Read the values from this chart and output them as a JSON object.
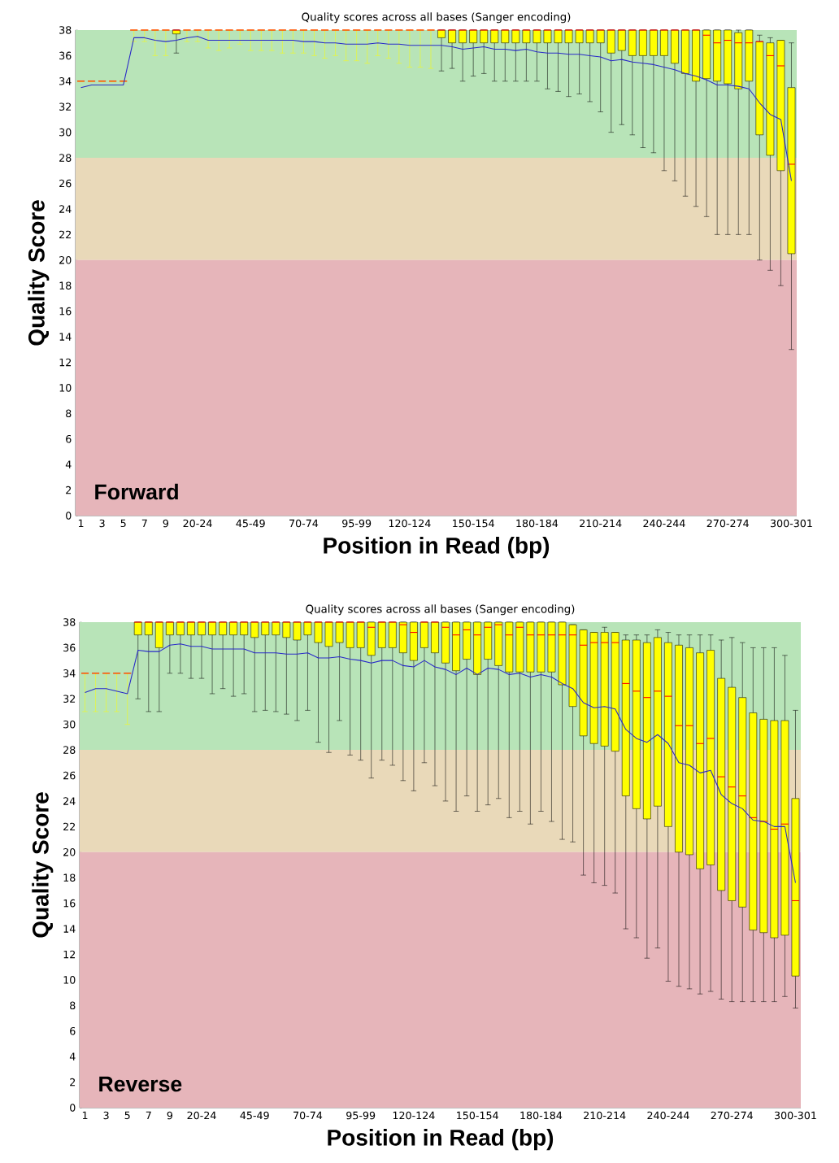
{
  "chart_data": [
    {
      "type": "box",
      "title": "Quality scores across all bases (Sanger encoding)",
      "xlabel": "Position in Read (bp)",
      "ylabel": "Quality Score",
      "annotations": [
        "Forward"
      ],
      "categories": [
        "1",
        null,
        "3",
        null,
        "5",
        null,
        "7",
        null,
        "9",
        null,
        null,
        "20-24",
        null,
        null,
        null,
        null,
        "45-49",
        null,
        null,
        null,
        null,
        "70-74",
        null,
        null,
        null,
        null,
        "95-99",
        null,
        null,
        null,
        null,
        "120-124",
        null,
        null,
        null,
        null,
        null,
        "150-154",
        null,
        null,
        null,
        null,
        null,
        "180-184",
        null,
        null,
        null,
        null,
        null,
        "210-214",
        null,
        null,
        null,
        null,
        null,
        "240-244",
        null,
        null,
        null,
        null,
        null,
        "270-274",
        null,
        null,
        null,
        null,
        null,
        "300-301"
      ],
      "ylim": [
        0,
        38
      ],
      "yticks": [
        0,
        2,
        4,
        6,
        8,
        10,
        12,
        14,
        16,
        18,
        20,
        22,
        24,
        26,
        28,
        30,
        32,
        34,
        36,
        38
      ],
      "bands": [
        {
          "axis": "y",
          "from": 28,
          "to": 38,
          "color": "#b8e4b8"
        },
        {
          "axis": "y",
          "from": 20,
          "to": 28,
          "color": "#e9d9b9"
        },
        {
          "axis": "y",
          "from": 0,
          "to": 20,
          "color": "#e6b5ba"
        }
      ],
      "series": [
        {
          "type": "box",
          "color": "#ffff00",
          "boxes": [
            {
              "low": 34,
              "q1": 34,
              "median": 34,
              "q3": 34,
              "high": 34
            },
            {
              "low": 34,
              "q1": 34,
              "median": 34,
              "q3": 34,
              "high": 34
            },
            {
              "low": 34,
              "q1": 34,
              "median": 34,
              "q3": 34,
              "high": 34
            },
            {
              "low": 34,
              "q1": 34,
              "median": 34,
              "q3": 34,
              "high": 34
            },
            {
              "low": 34,
              "q1": 34,
              "median": 34,
              "q3": 34,
              "high": 34
            },
            {
              "low": 37.1,
              "q1": 38,
              "median": 38,
              "q3": 38,
              "high": 38
            },
            {
              "low": 37.1,
              "q1": 38,
              "median": 38,
              "q3": 38,
              "high": 38
            },
            {
              "low": 36.0,
              "q1": 38,
              "median": 38,
              "q3": 38,
              "high": 38
            },
            {
              "low": 36.0,
              "q1": 38,
              "median": 38,
              "q3": 38,
              "high": 38
            },
            {
              "low": 36.2,
              "q1": 37.7,
              "median": 38,
              "q3": 38,
              "high": 38
            },
            {
              "low": 37.1,
              "q1": 38,
              "median": 38,
              "q3": 38,
              "high": 38
            },
            {
              "low": 37.1,
              "q1": 38,
              "median": 38,
              "q3": 38,
              "high": 38
            },
            {
              "low": 36.6,
              "q1": 38,
              "median": 38,
              "q3": 38,
              "high": 38
            },
            {
              "low": 36.4,
              "q1": 38,
              "median": 38,
              "q3": 38,
              "high": 38
            },
            {
              "low": 36.6,
              "q1": 38,
              "median": 38,
              "q3": 38,
              "high": 38
            },
            {
              "low": 36.9,
              "q1": 38,
              "median": 38,
              "q3": 38,
              "high": 38
            },
            {
              "low": 36.4,
              "q1": 38,
              "median": 38,
              "q3": 38,
              "high": 38
            },
            {
              "low": 36.4,
              "q1": 38,
              "median": 38,
              "q3": 38,
              "high": 38
            },
            {
              "low": 36.4,
              "q1": 38,
              "median": 38,
              "q3": 38,
              "high": 38
            },
            {
              "low": 36.2,
              "q1": 38,
              "median": 38,
              "q3": 38,
              "high": 38
            },
            {
              "low": 36.2,
              "q1": 38,
              "median": 38,
              "q3": 38,
              "high": 38
            },
            {
              "low": 36.2,
              "q1": 38,
              "median": 38,
              "q3": 38,
              "high": 38
            },
            {
              "low": 36.0,
              "q1": 38,
              "median": 38,
              "q3": 38,
              "high": 38
            },
            {
              "low": 35.8,
              "q1": 38,
              "median": 38,
              "q3": 38,
              "high": 38
            },
            {
              "low": 36.0,
              "q1": 38,
              "median": 38,
              "q3": 38,
              "high": 38
            },
            {
              "low": 35.6,
              "q1": 38,
              "median": 38,
              "q3": 38,
              "high": 38
            },
            {
              "low": 35.6,
              "q1": 38,
              "median": 38,
              "q3": 38,
              "high": 38
            },
            {
              "low": 35.4,
              "q1": 38,
              "median": 38,
              "q3": 38,
              "high": 38
            },
            {
              "low": 36.0,
              "q1": 38,
              "median": 38,
              "q3": 38,
              "high": 38
            },
            {
              "low": 35.8,
              "q1": 38,
              "median": 38,
              "q3": 38,
              "high": 38
            },
            {
              "low": 35.4,
              "q1": 38,
              "median": 38,
              "q3": 38,
              "high": 38
            },
            {
              "low": 35.1,
              "q1": 38,
              "median": 38,
              "q3": 38,
              "high": 38
            },
            {
              "low": 35.1,
              "q1": 38,
              "median": 38,
              "q3": 38,
              "high": 38
            },
            {
              "low": 35.0,
              "q1": 38,
              "median": 38,
              "q3": 38,
              "high": 38
            },
            {
              "low": 34.8,
              "q1": 37.4,
              "median": 38,
              "q3": 38,
              "high": 38
            },
            {
              "low": 35.0,
              "q1": 37.0,
              "median": 38,
              "q3": 38,
              "high": 38
            },
            {
              "low": 34.0,
              "q1": 37.0,
              "median": 38,
              "q3": 38,
              "high": 38
            },
            {
              "low": 34.4,
              "q1": 37.0,
              "median": 38,
              "q3": 38,
              "high": 38
            },
            {
              "low": 34.6,
              "q1": 37.0,
              "median": 38,
              "q3": 38,
              "high": 38
            },
            {
              "low": 34.0,
              "q1": 37.0,
              "median": 38,
              "q3": 38,
              "high": 38
            },
            {
              "low": 34.0,
              "q1": 37.0,
              "median": 38,
              "q3": 38,
              "high": 38
            },
            {
              "low": 34.0,
              "q1": 37.0,
              "median": 38,
              "q3": 38,
              "high": 38
            },
            {
              "low": 34.0,
              "q1": 37.0,
              "median": 38,
              "q3": 38,
              "high": 38
            },
            {
              "low": 34.0,
              "q1": 37.0,
              "median": 38,
              "q3": 38,
              "high": 38
            },
            {
              "low": 33.4,
              "q1": 37.0,
              "median": 38,
              "q3": 38,
              "high": 38
            },
            {
              "low": 33.2,
              "q1": 37.0,
              "median": 38,
              "q3": 38,
              "high": 38
            },
            {
              "low": 32.8,
              "q1": 37.0,
              "median": 38,
              "q3": 38,
              "high": 38
            },
            {
              "low": 33.0,
              "q1": 37.0,
              "median": 38,
              "q3": 38,
              "high": 38
            },
            {
              "low": 32.4,
              "q1": 37.0,
              "median": 38,
              "q3": 38,
              "high": 38
            },
            {
              "low": 31.6,
              "q1": 37.0,
              "median": 38,
              "q3": 38,
              "high": 38
            },
            {
              "low": 30.0,
              "q1": 36.2,
              "median": 38,
              "q3": 38,
              "high": 38
            },
            {
              "low": 30.6,
              "q1": 36.4,
              "median": 38,
              "q3": 38,
              "high": 38
            },
            {
              "low": 29.8,
              "q1": 36.0,
              "median": 38,
              "q3": 38,
              "high": 38
            },
            {
              "low": 28.8,
              "q1": 36.0,
              "median": 38,
              "q3": 38,
              "high": 38
            },
            {
              "low": 28.4,
              "q1": 36.0,
              "median": 38,
              "q3": 38,
              "high": 38
            },
            {
              "low": 27.0,
              "q1": 36.0,
              "median": 38,
              "q3": 38,
              "high": 38
            },
            {
              "low": 26.2,
              "q1": 35.4,
              "median": 38,
              "q3": 38,
              "high": 38
            },
            {
              "low": 25.0,
              "q1": 34.6,
              "median": 38,
              "q3": 38,
              "high": 38
            },
            {
              "low": 24.2,
              "q1": 34.0,
              "median": 38,
              "q3": 38,
              "high": 38
            },
            {
              "low": 23.4,
              "q1": 34.2,
              "median": 37.6,
              "q3": 38,
              "high": 38
            },
            {
              "low": 22.0,
              "q1": 34.0,
              "median": 37.0,
              "q3": 38,
              "high": 38
            },
            {
              "low": 22.0,
              "q1": 33.8,
              "median": 37.2,
              "q3": 38,
              "high": 38
            },
            {
              "low": 22.0,
              "q1": 33.4,
              "median": 37.0,
              "q3": 37.8,
              "high": 38
            },
            {
              "low": 22.0,
              "q1": 34.0,
              "median": 37.0,
              "q3": 38,
              "high": 38
            },
            {
              "low": 20.0,
              "q1": 29.8,
              "median": 37.1,
              "q3": 37.1,
              "high": 37.6
            },
            {
              "low": 19.2,
              "q1": 28.2,
              "median": 36.0,
              "q3": 37.0,
              "high": 37.4
            },
            {
              "low": 18.0,
              "q1": 27.0,
              "median": 35.2,
              "q3": 37.2,
              "high": 37.2
            },
            {
              "low": 13.0,
              "q1": 20.5,
              "median": 27.5,
              "q3": 33.5,
              "high": 37.0
            }
          ]
        },
        {
          "type": "line",
          "color": "#2828c8",
          "values": [
            33.5,
            33.7,
            33.7,
            33.7,
            33.7,
            37.4,
            37.4,
            37.2,
            37.1,
            37.2,
            37.4,
            37.5,
            37.2,
            37.2,
            37.2,
            37.2,
            37.2,
            37.2,
            37.2,
            37.2,
            37.2,
            37.1,
            37.1,
            37.0,
            37.0,
            36.9,
            36.9,
            36.9,
            37.0,
            36.9,
            36.9,
            36.8,
            36.8,
            36.8,
            36.8,
            36.7,
            36.5,
            36.6,
            36.7,
            36.5,
            36.5,
            36.4,
            36.5,
            36.3,
            36.2,
            36.2,
            36.1,
            36.1,
            36.0,
            35.9,
            35.6,
            35.7,
            35.5,
            35.4,
            35.3,
            35.1,
            34.9,
            34.6,
            34.4,
            34.1,
            33.7,
            33.7,
            33.6,
            33.4,
            32.3,
            31.4,
            31.0,
            26.2
          ]
        }
      ]
    },
    {
      "type": "box",
      "title": "Quality scores across all bases (Sanger encoding)",
      "xlabel": "Position in Read (bp)",
      "ylabel": "Quality Score",
      "annotations": [
        "Reverse"
      ],
      "categories": [
        "1",
        null,
        "3",
        null,
        "5",
        null,
        "7",
        null,
        "9",
        null,
        null,
        "20-24",
        null,
        null,
        null,
        null,
        "45-49",
        null,
        null,
        null,
        null,
        "70-74",
        null,
        null,
        null,
        null,
        "95-99",
        null,
        null,
        null,
        null,
        "120-124",
        null,
        null,
        null,
        null,
        null,
        "150-154",
        null,
        null,
        null,
        null,
        null,
        "180-184",
        null,
        null,
        null,
        null,
        null,
        "210-214",
        null,
        null,
        null,
        null,
        null,
        "240-244",
        null,
        null,
        null,
        null,
        null,
        "270-274",
        null,
        null,
        null,
        null,
        null,
        "300-301"
      ],
      "ylim": [
        0,
        38
      ],
      "yticks": [
        0,
        2,
        4,
        6,
        8,
        10,
        12,
        14,
        16,
        18,
        20,
        22,
        24,
        26,
        28,
        30,
        32,
        34,
        36,
        38
      ],
      "bands": [
        {
          "axis": "y",
          "from": 28,
          "to": 38,
          "color": "#b8e4b8"
        },
        {
          "axis": "y",
          "from": 20,
          "to": 28,
          "color": "#e9d9b9"
        },
        {
          "axis": "y",
          "from": 0,
          "to": 20,
          "color": "#e6b5ba"
        }
      ],
      "series": [
        {
          "type": "box",
          "color": "#ffff00",
          "boxes": [
            {
              "low": 31.0,
              "q1": 34,
              "median": 34,
              "q3": 34,
              "high": 34
            },
            {
              "low": 31.0,
              "q1": 34,
              "median": 34,
              "q3": 34,
              "high": 34
            },
            {
              "low": 31.0,
              "q1": 34,
              "median": 34,
              "q3": 34,
              "high": 34
            },
            {
              "low": 31.0,
              "q1": 34,
              "median": 34,
              "q3": 34,
              "high": 34
            },
            {
              "low": 30.0,
              "q1": 34,
              "median": 34,
              "q3": 34,
              "high": 34
            },
            {
              "low": 32.0,
              "q1": 37.0,
              "median": 38,
              "q3": 38,
              "high": 38
            },
            {
              "low": 31.0,
              "q1": 37.0,
              "median": 38,
              "q3": 38,
              "high": 38
            },
            {
              "low": 31.0,
              "q1": 36.0,
              "median": 38,
              "q3": 38,
              "high": 38
            },
            {
              "low": 34.0,
              "q1": 37.0,
              "median": 38,
              "q3": 38,
              "high": 38
            },
            {
              "low": 34.0,
              "q1": 37.0,
              "median": 38,
              "q3": 38,
              "high": 38
            },
            {
              "low": 33.6,
              "q1": 37.0,
              "median": 38,
              "q3": 38,
              "high": 38
            },
            {
              "low": 33.6,
              "q1": 37.0,
              "median": 38,
              "q3": 38,
              "high": 38
            },
            {
              "low": 32.4,
              "q1": 37.0,
              "median": 38,
              "q3": 38,
              "high": 38
            },
            {
              "low": 32.8,
              "q1": 37.0,
              "median": 38,
              "q3": 38,
              "high": 38
            },
            {
              "low": 32.2,
              "q1": 37.0,
              "median": 38,
              "q3": 38,
              "high": 38
            },
            {
              "low": 32.4,
              "q1": 37.0,
              "median": 38,
              "q3": 38,
              "high": 38
            },
            {
              "low": 31.0,
              "q1": 36.8,
              "median": 38,
              "q3": 38,
              "high": 38
            },
            {
              "low": 31.1,
              "q1": 37.0,
              "median": 38,
              "q3": 38,
              "high": 38
            },
            {
              "low": 31.0,
              "q1": 37.0,
              "median": 38,
              "q3": 38,
              "high": 38
            },
            {
              "low": 30.8,
              "q1": 36.8,
              "median": 38,
              "q3": 38,
              "high": 38
            },
            {
              "low": 30.3,
              "q1": 36.6,
              "median": 38,
              "q3": 38,
              "high": 38
            },
            {
              "low": 31.1,
              "q1": 37.0,
              "median": 38,
              "q3": 38,
              "high": 38
            },
            {
              "low": 28.6,
              "q1": 36.4,
              "median": 38,
              "q3": 38,
              "high": 38
            },
            {
              "low": 27.8,
              "q1": 36.1,
              "median": 38,
              "q3": 38,
              "high": 38
            },
            {
              "low": 30.3,
              "q1": 36.4,
              "median": 38,
              "q3": 38,
              "high": 38
            },
            {
              "low": 27.6,
              "q1": 36.0,
              "median": 38,
              "q3": 38,
              "high": 38
            },
            {
              "low": 27.2,
              "q1": 36.0,
              "median": 38,
              "q3": 38,
              "high": 38
            },
            {
              "low": 25.8,
              "q1": 35.4,
              "median": 37.6,
              "q3": 38,
              "high": 38
            },
            {
              "low": 27.2,
              "q1": 36.0,
              "median": 38,
              "q3": 38,
              "high": 38
            },
            {
              "low": 26.8,
              "q1": 36.0,
              "median": 38,
              "q3": 38,
              "high": 38
            },
            {
              "low": 25.6,
              "q1": 35.6,
              "median": 37.8,
              "q3": 38,
              "high": 38
            },
            {
              "low": 24.8,
              "q1": 35.0,
              "median": 37.2,
              "q3": 38,
              "high": 38
            },
            {
              "low": 27.0,
              "q1": 36.0,
              "median": 38,
              "q3": 38,
              "high": 38
            },
            {
              "low": 25.2,
              "q1": 35.6,
              "median": 38,
              "q3": 38,
              "high": 38
            },
            {
              "low": 24.0,
              "q1": 34.8,
              "median": 37.6,
              "q3": 38,
              "high": 38
            },
            {
              "low": 23.2,
              "q1": 34.2,
              "median": 37.0,
              "q3": 38,
              "high": 38
            },
            {
              "low": 24.4,
              "q1": 35.1,
              "median": 37.4,
              "q3": 38,
              "high": 38
            },
            {
              "low": 23.2,
              "q1": 33.9,
              "median": 37.0,
              "q3": 38,
              "high": 38
            },
            {
              "low": 23.7,
              "q1": 35.1,
              "median": 37.6,
              "q3": 38,
              "high": 38
            },
            {
              "low": 24.2,
              "q1": 34.6,
              "median": 37.8,
              "q3": 38,
              "high": 38
            },
            {
              "low": 22.7,
              "q1": 34.1,
              "median": 37.0,
              "q3": 38,
              "high": 38
            },
            {
              "low": 23.2,
              "q1": 34.1,
              "median": 37.6,
              "q3": 38,
              "high": 38
            },
            {
              "low": 22.2,
              "q1": 34.1,
              "median": 37.0,
              "q3": 38,
              "high": 38
            },
            {
              "low": 23.2,
              "q1": 34.1,
              "median": 37.0,
              "q3": 38,
              "high": 38
            },
            {
              "low": 22.4,
              "q1": 34.1,
              "median": 37.0,
              "q3": 38,
              "high": 38
            },
            {
              "low": 21.0,
              "q1": 33.1,
              "median": 37.0,
              "q3": 38,
              "high": 38
            },
            {
              "low": 20.8,
              "q1": 31.4,
              "median": 37.0,
              "q3": 37.8,
              "high": 37.8
            },
            {
              "low": 18.2,
              "q1": 29.1,
              "median": 36.2,
              "q3": 37.4,
              "high": 37.4
            },
            {
              "low": 17.6,
              "q1": 28.5,
              "median": 36.4,
              "q3": 37.2,
              "high": 37.2
            },
            {
              "low": 17.4,
              "q1": 28.3,
              "median": 36.4,
              "q3": 37.2,
              "high": 37.6
            },
            {
              "low": 16.8,
              "q1": 27.9,
              "median": 36.4,
              "q3": 37.2,
              "high": 37.2
            },
            {
              "low": 14.0,
              "q1": 24.4,
              "median": 33.2,
              "q3": 36.6,
              "high": 37.0
            },
            {
              "low": 13.3,
              "q1": 23.4,
              "median": 32.6,
              "q3": 36.6,
              "high": 37.0
            },
            {
              "low": 11.7,
              "q1": 22.6,
              "median": 32.1,
              "q3": 36.4,
              "high": 37.0
            },
            {
              "low": 12.5,
              "q1": 23.6,
              "median": 32.6,
              "q3": 36.8,
              "high": 37.4
            },
            {
              "low": 9.9,
              "q1": 22.0,
              "median": 32.2,
              "q3": 36.4,
              "high": 37.2
            },
            {
              "low": 9.5,
              "q1": 20.0,
              "median": 29.9,
              "q3": 36.2,
              "high": 37.0
            },
            {
              "low": 9.3,
              "q1": 19.8,
              "median": 29.9,
              "q3": 36.0,
              "high": 37.0
            },
            {
              "low": 8.9,
              "q1": 18.7,
              "median": 28.5,
              "q3": 35.6,
              "high": 37.0
            },
            {
              "low": 9.1,
              "q1": 19.0,
              "median": 28.9,
              "q3": 35.8,
              "high": 37.0
            },
            {
              "low": 8.5,
              "q1": 17.0,
              "median": 25.9,
              "q3": 33.6,
              "high": 36.6
            },
            {
              "low": 8.3,
              "q1": 16.2,
              "median": 25.1,
              "q3": 32.9,
              "high": 36.8
            },
            {
              "low": 8.3,
              "q1": 15.7,
              "median": 24.4,
              "q3": 32.1,
              "high": 36.4
            },
            {
              "low": 8.3,
              "q1": 13.9,
              "median": 22.7,
              "q3": 30.9,
              "high": 36.0
            },
            {
              "low": 8.3,
              "q1": 13.7,
              "median": 22.4,
              "q3": 30.4,
              "high": 36.0
            },
            {
              "low": 8.3,
              "q1": 13.3,
              "median": 21.8,
              "q3": 30.3,
              "high": 36.0
            },
            {
              "low": 8.7,
              "q1": 13.5,
              "median": 22.2,
              "q3": 30.3,
              "high": 35.4
            },
            {
              "low": 7.8,
              "q1": 10.3,
              "median": 16.2,
              "q3": 24.2,
              "high": 31.1
            }
          ]
        },
        {
          "type": "line",
          "color": "#2828c8",
          "values": [
            32.5,
            32.8,
            32.8,
            32.6,
            32.4,
            35.8,
            35.7,
            35.7,
            36.2,
            36.3,
            36.1,
            36.1,
            35.9,
            35.9,
            35.9,
            35.9,
            35.6,
            35.6,
            35.6,
            35.5,
            35.5,
            35.6,
            35.2,
            35.2,
            35.3,
            35.1,
            35.0,
            34.8,
            35.0,
            35.0,
            34.6,
            34.5,
            35.0,
            34.5,
            34.3,
            33.9,
            34.4,
            33.9,
            34.4,
            34.3,
            33.9,
            34.0,
            33.7,
            33.9,
            33.7,
            33.2,
            32.8,
            31.7,
            31.3,
            31.4,
            31.2,
            29.6,
            28.9,
            28.6,
            29.2,
            28.5,
            27.0,
            26.8,
            26.2,
            26.4,
            24.5,
            23.8,
            23.4,
            22.5,
            22.4,
            22.0,
            22.0,
            17.6
          ]
        }
      ]
    }
  ]
}
